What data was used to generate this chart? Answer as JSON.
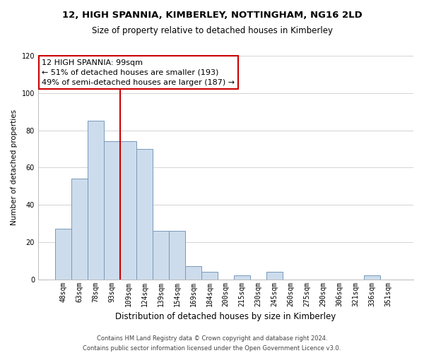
{
  "title": "12, HIGH SPANNIA, KIMBERLEY, NOTTINGHAM, NG16 2LD",
  "subtitle": "Size of property relative to detached houses in Kimberley",
  "xlabel": "Distribution of detached houses by size in Kimberley",
  "ylabel": "Number of detached properties",
  "footer_line1": "Contains HM Land Registry data © Crown copyright and database right 2024.",
  "footer_line2": "Contains public sector information licensed under the Open Government Licence v3.0.",
  "bar_labels": [
    "48sqm",
    "63sqm",
    "78sqm",
    "93sqm",
    "109sqm",
    "124sqm",
    "139sqm",
    "154sqm",
    "169sqm",
    "184sqm",
    "200sqm",
    "215sqm",
    "230sqm",
    "245sqm",
    "260sqm",
    "275sqm",
    "290sqm",
    "306sqm",
    "321sqm",
    "336sqm",
    "351sqm"
  ],
  "bar_values": [
    27,
    54,
    85,
    74,
    74,
    70,
    26,
    26,
    7,
    4,
    0,
    2,
    0,
    4,
    0,
    0,
    0,
    0,
    0,
    2,
    0
  ],
  "bar_color": "#cddcec",
  "bar_edge_color": "#7799bb",
  "vline_color": "#cc0000",
  "vline_x": 3.5,
  "annotation_title": "12 HIGH SPANNIA: 99sqm",
  "annotation_line1": "← 51% of detached houses are smaller (193)",
  "annotation_line2": "49% of semi-detached houses are larger (187) →",
  "ylim": [
    0,
    120
  ],
  "yticks": [
    0,
    20,
    40,
    60,
    80,
    100,
    120
  ],
  "background_color": "#ffffff",
  "grid_color": "#cccccc",
  "title_fontsize": 9.5,
  "subtitle_fontsize": 8.5,
  "xlabel_fontsize": 8.5,
  "ylabel_fontsize": 7.5,
  "tick_fontsize": 7,
  "footer_fontsize": 6,
  "annotation_fontsize": 8
}
